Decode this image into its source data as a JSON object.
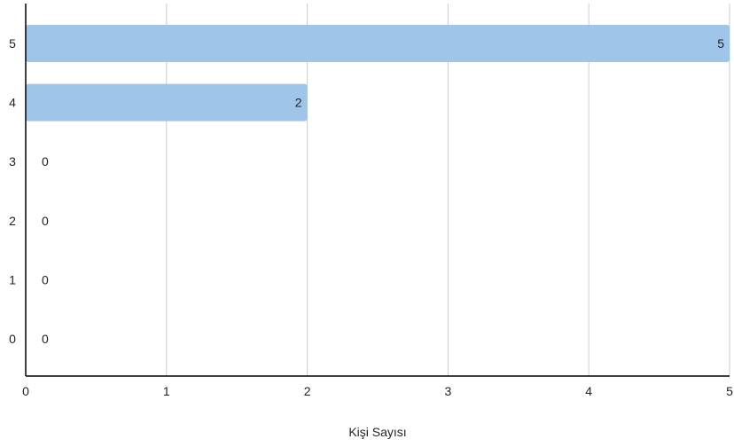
{
  "chart_data": {
    "type": "bar",
    "orientation": "horizontal",
    "categories": [
      "5",
      "4",
      "3",
      "2",
      "1",
      "0"
    ],
    "values": [
      5,
      2,
      0,
      0,
      0,
      0
    ],
    "data_labels": [
      "5",
      "2",
      "0",
      "0",
      "0",
      "0"
    ],
    "xlabel": "Kişi Sayısı",
    "ylabel": "",
    "title": "",
    "xlim": [
      0,
      5
    ],
    "x_ticks": [
      "0",
      "1",
      "2",
      "3",
      "4",
      "5"
    ],
    "grid": "vertical",
    "bar_color": "#9fc5e8",
    "grid_color": "#cccccc",
    "axis_color": "#000000"
  }
}
